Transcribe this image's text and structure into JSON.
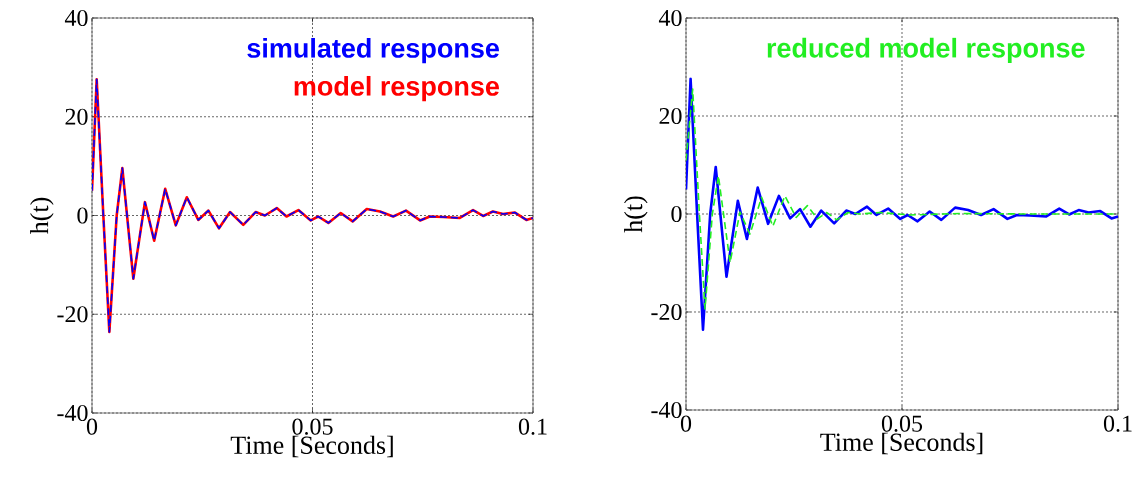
{
  "chart_data": [
    {
      "type": "line",
      "xlabel": "Time [Seconds]",
      "ylabel": "h(t)",
      "xlim": [
        0,
        0.1
      ],
      "ylim": [
        -40,
        40
      ],
      "xticks": [
        0,
        0.05,
        0.1
      ],
      "yticks": [
        -40,
        -20,
        0,
        20,
        40
      ],
      "grid": true,
      "legend": "top right",
      "series": [
        {
          "name": "simulated response",
          "color": "#0000ff",
          "line_style": "dashed",
          "x": [
            0,
            0.00106,
            0.00257,
            0.00393,
            0.0056,
            0.00688,
            0.00937,
            0.012,
            0.0141,
            0.0166,
            0.019,
            0.0215,
            0.0241,
            0.0264,
            0.0288,
            0.0313,
            0.0343,
            0.0371,
            0.0392,
            0.0419,
            0.0441,
            0.0468,
            0.0496,
            0.0513,
            0.0536,
            0.0564,
            0.0591,
            0.0623,
            0.0653,
            0.0683,
            0.0712,
            0.0744,
            0.0766,
            0.0796,
            0.0834,
            0.0864,
            0.0887,
            0.0909,
            0.0932,
            0.0959,
            0.0985,
            0.1
          ],
          "values": [
            5,
            27.6,
            0,
            -23.6,
            0,
            9.6,
            -12.8,
            2.7,
            -5.1,
            5.4,
            -2.0,
            3.7,
            -0.9,
            1.0,
            -2.6,
            0.7,
            -1.9,
            0.7,
            0,
            1.5,
            -0.2,
            1.1,
            -1.0,
            -0.2,
            -1.5,
            0.5,
            -1.2,
            1.3,
            0.8,
            -0.2,
            1.0,
            -1.0,
            -0.2,
            -0.3,
            -0.5,
            1.1,
            -0.1,
            0.8,
            0.3,
            0.6,
            -0.9,
            -0.5
          ]
        },
        {
          "name": "model response",
          "color": "#ff0000",
          "line_style": "solid",
          "x": [
            0,
            0.00106,
            0.00257,
            0.00393,
            0.0056,
            0.00688,
            0.00937,
            0.012,
            0.0141,
            0.0166,
            0.019,
            0.0215,
            0.0241,
            0.0264,
            0.0288,
            0.0313,
            0.0343,
            0.0371,
            0.0392,
            0.0419,
            0.0441,
            0.0468,
            0.0496,
            0.0513,
            0.0536,
            0.0564,
            0.0591,
            0.0623,
            0.0653,
            0.0683,
            0.0712,
            0.0744,
            0.0766,
            0.0796,
            0.0834,
            0.0864,
            0.0887,
            0.0909,
            0.0932,
            0.0959,
            0.0985,
            0.1
          ],
          "values": [
            5,
            27.6,
            0,
            -23.6,
            0,
            9.6,
            -12.8,
            2.7,
            -5.1,
            5.4,
            -2.0,
            3.7,
            -0.9,
            1.0,
            -2.6,
            0.7,
            -1.9,
            0.7,
            0,
            1.5,
            -0.2,
            1.1,
            -1.0,
            -0.2,
            -1.5,
            0.5,
            -1.2,
            1.3,
            0.8,
            -0.2,
            1.0,
            -1.0,
            -0.2,
            -0.3,
            -0.5,
            1.1,
            -0.1,
            0.8,
            0.3,
            0.6,
            -0.9,
            -0.5
          ]
        }
      ]
    },
    {
      "type": "line",
      "xlabel": "Time [Seconds]",
      "ylabel": "h(t)",
      "xlim": [
        0,
        0.1
      ],
      "ylim": [
        -40,
        40
      ],
      "xticks": [
        0,
        0.05,
        0.1
      ],
      "yticks": [
        -40,
        -20,
        0,
        20,
        40
      ],
      "grid": true,
      "legend": "top right",
      "series": [
        {
          "color": "#0000ff",
          "line_style": "solid",
          "x": [
            0,
            0.00106,
            0.00257,
            0.00393,
            0.0056,
            0.00688,
            0.00937,
            0.012,
            0.0141,
            0.0166,
            0.019,
            0.0215,
            0.0241,
            0.0264,
            0.0288,
            0.0313,
            0.0343,
            0.0371,
            0.0392,
            0.0419,
            0.0441,
            0.0468,
            0.0496,
            0.0513,
            0.0536,
            0.0564,
            0.0591,
            0.0623,
            0.0653,
            0.0683,
            0.0712,
            0.0744,
            0.0766,
            0.0796,
            0.0834,
            0.0864,
            0.0887,
            0.0909,
            0.0932,
            0.0959,
            0.0985,
            0.1
          ],
          "values": [
            5,
            27.6,
            0,
            -23.6,
            0,
            9.6,
            -12.8,
            2.7,
            -5.1,
            5.4,
            -2.0,
            3.7,
            -0.9,
            1.0,
            -2.6,
            0.7,
            -1.9,
            0.7,
            0,
            1.5,
            -0.2,
            1.1,
            -1.0,
            -0.2,
            -1.5,
            0.5,
            -1.2,
            1.3,
            0.8,
            -0.2,
            1.0,
            -1.0,
            -0.2,
            -0.3,
            -0.5,
            1.1,
            -0.1,
            0.8,
            0.3,
            0.6,
            -0.9,
            -0.5
          ]
        },
        {
          "name": "reduced model response",
          "color": "#22ee22",
          "line_style": "dashed",
          "x": [
            0,
            0.00155,
            0.0031,
            0.0044,
            0.0061,
            0.0075,
            0.0102,
            0.0125,
            0.0148,
            0.0175,
            0.0201,
            0.0229,
            0.0255,
            0.0281,
            0.0304,
            0.0326,
            0.0349,
            0.0375,
            0.0403,
            0.0449,
            0.0519,
            0.0634,
            0.0789,
            0.1
          ],
          "values": [
            10.9,
            25.5,
            0,
            -19.4,
            0,
            7.8,
            -9.9,
            0.4,
            -4.1,
            3.4,
            -2.5,
            3.7,
            -0.7,
            1.7,
            -1.0,
            0.3,
            -1.2,
            0.3,
            0,
            0.3,
            -0.2,
            0.1,
            0,
            0
          ]
        }
      ]
    }
  ]
}
